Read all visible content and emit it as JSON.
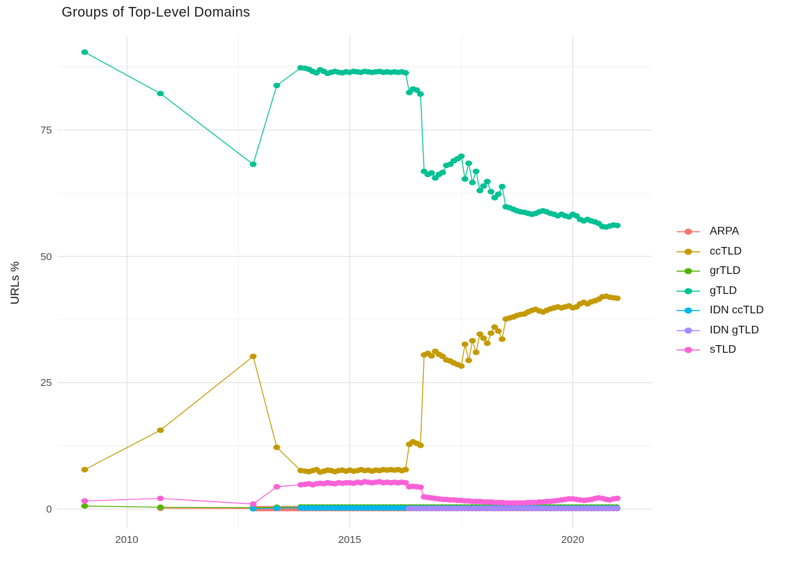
{
  "title": "Groups of Top-Level Domains",
  "chart_data": {
    "type": "line",
    "title": "Groups of Top-Level Domains",
    "xlabel": "",
    "ylabel": "URLs %",
    "xlim": [
      2008.44,
      2021.77
    ],
    "ylim": [
      -3.7,
      93.6
    ],
    "x_ticks": [
      2010,
      2015,
      2020
    ],
    "x_minor": [
      2012.5,
      2017.5
    ],
    "y_ticks": [
      0,
      25,
      50,
      75
    ],
    "y_minor": [
      12.5,
      37.5,
      62.5,
      87.5
    ],
    "grid": "on",
    "legend_position": "right",
    "point_shape": "ellipse",
    "series": [
      {
        "name": "ARPA",
        "color": "#F8766D",
        "pre": [
          [
            2010.75,
            0.15
          ]
        ],
        "flat": {
          "from": 2012.83,
          "to": 2021.0,
          "value": 0.08,
          "per_year": 12
        }
      },
      {
        "name": "ccTLD",
        "color": "#C49A00",
        "pre": [
          [
            2009.05,
            7.8
          ],
          [
            2010.75,
            15.6
          ],
          [
            2012.83,
            30.2
          ],
          [
            2013.36,
            12.2
          ],
          [
            2013.9,
            7.6
          ]
        ],
        "monthly_start": 2014,
        "values": [
          7.5,
          7.4,
          7.6,
          7.8,
          7.3,
          7.5,
          7.7,
          7.6,
          7.4,
          7.6,
          7.7,
          7.5,
          7.7,
          7.5,
          7.6,
          7.8,
          7.6,
          7.7,
          7.5,
          7.7,
          7.6,
          7.8,
          7.7,
          7.8,
          7.7,
          7.8,
          7.6,
          7.8,
          12.8,
          13.3,
          13.0,
          12.6,
          30.5,
          30.8,
          30.3,
          31.2,
          30.6,
          30.2,
          29.5,
          29.3,
          28.9,
          28.6,
          28.3,
          32.6,
          29.4,
          33.3,
          31.0,
          34.6,
          33.8,
          32.8,
          34.8,
          36.0,
          35.2,
          33.6,
          37.6,
          37.8,
          38.0,
          38.3,
          38.5,
          38.6,
          39.0,
          39.3,
          39.5,
          39.2,
          39.0,
          39.3,
          39.6,
          39.8,
          40.0,
          39.8,
          40.0,
          40.2,
          39.8,
          40.0,
          40.6,
          40.9,
          40.6,
          41.0,
          41.2,
          41.5,
          42.0,
          42.1,
          41.9,
          41.8,
          41.7
        ]
      },
      {
        "name": "grTLD",
        "color": "#53B400",
        "pre": [
          [
            2009.05,
            0.6
          ],
          [
            2010.75,
            0.35
          ],
          [
            2012.83,
            0.3
          ],
          [
            2013.36,
            0.35
          ]
        ],
        "flat": {
          "from": 2013.9,
          "to": 2021.0,
          "value": 0.4,
          "per_year": 12
        }
      },
      {
        "name": "gTLD",
        "color": "#00C094",
        "pre": [
          [
            2009.05,
            90.4
          ],
          [
            2010.75,
            82.2
          ],
          [
            2012.83,
            68.2
          ],
          [
            2013.36,
            83.8
          ],
          [
            2013.9,
            87.3
          ]
        ],
        "monthly_start": 2014,
        "values": [
          87.2,
          87.0,
          86.6,
          86.3,
          86.9,
          86.6,
          86.2,
          86.4,
          86.6,
          86.4,
          86.3,
          86.5,
          86.4,
          86.6,
          86.5,
          86.4,
          86.6,
          86.5,
          86.4,
          86.5,
          86.6,
          86.4,
          86.5,
          86.4,
          86.5,
          86.4,
          86.5,
          86.3,
          82.4,
          83.1,
          82.9,
          82.1,
          66.8,
          66.2,
          66.5,
          65.5,
          66.2,
          66.6,
          68.0,
          68.2,
          68.9,
          69.3,
          69.8,
          65.3,
          68.4,
          64.6,
          66.8,
          63.0,
          63.9,
          64.8,
          62.8,
          61.6,
          62.3,
          63.8,
          59.8,
          59.6,
          59.3,
          59.0,
          58.8,
          58.7,
          58.5,
          58.3,
          58.5,
          58.8,
          59.0,
          58.8,
          58.5,
          58.3,
          58.0,
          58.3,
          58.0,
          57.8,
          58.3,
          58.0,
          57.3,
          57.0,
          57.3,
          57.0,
          56.8,
          56.5,
          55.9,
          55.8,
          56.0,
          56.2,
          56.1
        ]
      },
      {
        "name": "IDN ccTLD",
        "color": "#00B6EB",
        "pre": [
          [
            2012.83,
            0.05
          ],
          [
            2013.36,
            0.15
          ]
        ],
        "flat": {
          "from": 2013.9,
          "to": 2021.0,
          "value": 0.22,
          "per_year": 12
        }
      },
      {
        "name": "IDN gTLD",
        "color": "#A58AFF",
        "flat": {
          "from": 2016.33,
          "to": 2021.0,
          "value": 0.12,
          "per_year": 12
        }
      },
      {
        "name": "sTLD",
        "color": "#FB61D7",
        "pre": [
          [
            2009.05,
            1.6
          ],
          [
            2010.75,
            2.1
          ],
          [
            2012.83,
            1.0
          ],
          [
            2013.36,
            4.4
          ],
          [
            2013.9,
            4.8
          ]
        ],
        "monthly_start": 2014,
        "values": [
          4.9,
          5.0,
          4.8,
          5.0,
          5.1,
          5.0,
          5.2,
          5.1,
          5.0,
          5.2,
          5.1,
          5.2,
          5.2,
          5.1,
          5.3,
          5.2,
          5.4,
          5.3,
          5.2,
          5.3,
          5.4,
          5.2,
          5.3,
          5.2,
          5.3,
          5.2,
          5.3,
          5.2,
          4.4,
          4.5,
          4.4,
          4.3,
          2.4,
          2.3,
          2.2,
          2.1,
          2.0,
          1.9,
          1.9,
          1.8,
          1.8,
          1.7,
          1.7,
          1.6,
          1.6,
          1.5,
          1.5,
          1.5,
          1.4,
          1.4,
          1.4,
          1.3,
          1.3,
          1.3,
          1.2,
          1.2,
          1.2,
          1.2,
          1.2,
          1.2,
          1.3,
          1.3,
          1.3,
          1.4,
          1.4,
          1.5,
          1.5,
          1.6,
          1.7,
          1.8,
          1.9,
          2.0,
          2.0,
          1.9,
          1.8,
          1.7,
          1.8,
          1.9,
          2.1,
          2.2,
          2.1,
          1.9,
          1.8,
          2.0,
          2.1
        ]
      }
    ],
    "style": {
      "grid_major_color": "#e4e4e4",
      "grid_minor_color": "#f1f1f1",
      "tick_label_color": "#4d4d4d",
      "text_color": "#141414",
      "background": "#ffffff"
    }
  }
}
